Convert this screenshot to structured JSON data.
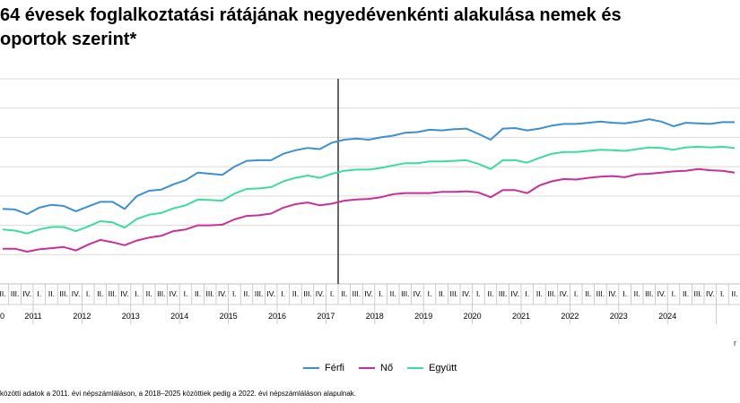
{
  "title": "64 évesek foglalkoztatási rátájának negyedévenkénti alakulása nemek és\noportok szerint*",
  "chart_data": {
    "type": "line",
    "quarter_labels": [
      "I.",
      "II.",
      "III.",
      "IV."
    ],
    "years": [
      "2011",
      "2012",
      "2013",
      "2014",
      "2015",
      "2016",
      "2017",
      "2018",
      "2019",
      "2020",
      "2021",
      "2022",
      "2023",
      "2024"
    ],
    "first_partial": "0",
    "last_partial": "r",
    "grid": true,
    "legend_position": "bottom",
    "series": [
      {
        "name": "Férfi",
        "color": "#3d8fd0",
        "values": [
          57.8,
          57.7,
          56.9,
          58.0,
          58.5,
          58.3,
          57.4,
          58.2,
          59.0,
          59.0,
          57.8,
          60.0,
          60.9,
          61.1,
          62.0,
          62.7,
          64.0,
          63.8,
          63.6,
          65.0,
          66.0,
          66.1,
          66.1,
          67.2,
          67.8,
          68.2,
          68.0,
          69.1,
          69.6,
          69.8,
          69.6,
          70.0,
          70.3,
          70.8,
          70.9,
          71.3,
          71.2,
          71.4,
          71.5,
          70.6,
          69.6,
          71.5,
          71.6,
          71.2,
          71.5,
          72.0,
          72.3,
          72.3,
          72.5,
          72.7,
          72.5,
          72.4,
          72.7,
          73.1,
          72.7,
          71.9,
          72.5,
          72.4,
          72.3,
          72.6,
          72.6
        ]
      },
      {
        "name": "Nő",
        "color": "#c8309a",
        "values": [
          51.0,
          51.0,
          50.5,
          50.9,
          51.1,
          51.3,
          50.7,
          51.7,
          52.5,
          52.1,
          51.6,
          52.4,
          52.9,
          53.2,
          54.0,
          54.3,
          55.0,
          55.0,
          55.1,
          56.0,
          56.6,
          56.7,
          57.0,
          58.0,
          58.6,
          58.9,
          58.4,
          58.7,
          59.2,
          59.4,
          59.5,
          59.8,
          60.3,
          60.5,
          60.5,
          60.5,
          60.7,
          60.7,
          60.8,
          60.6,
          59.8,
          61.0,
          61.0,
          60.5,
          61.8,
          62.5,
          62.9,
          62.8,
          63.1,
          63.3,
          63.4,
          63.2,
          63.7,
          63.8,
          64.0,
          64.2,
          64.3,
          64.6,
          64.4,
          64.3,
          64.0
        ]
      },
      {
        "name": "Együtt",
        "color": "#3ddc9e",
        "values": [
          54.3,
          54.1,
          53.6,
          54.3,
          54.7,
          54.7,
          54.0,
          54.8,
          55.7,
          55.5,
          54.6,
          56.1,
          56.8,
          57.1,
          57.9,
          58.4,
          59.4,
          59.3,
          59.2,
          60.4,
          61.2,
          61.3,
          61.5,
          62.5,
          63.1,
          63.5,
          63.1,
          63.8,
          64.3,
          64.5,
          64.5,
          64.8,
          65.2,
          65.6,
          65.6,
          65.9,
          65.9,
          66.0,
          66.1,
          65.5,
          64.6,
          66.1,
          66.1,
          65.7,
          66.5,
          67.2,
          67.5,
          67.5,
          67.7,
          67.9,
          67.8,
          67.7,
          68.0,
          68.3,
          68.2,
          67.9,
          68.3,
          68.4,
          68.3,
          68.4,
          68.2
        ]
      }
    ],
    "ylim": [
      45,
      80
    ],
    "grid_step": 5,
    "divider_after_index": 27
  },
  "footnote": "közötti adatok a 2011. évi népszámláláson, a 2018–2025 közöttiek pedig a 2022. évi népszámláláson alapulnak."
}
